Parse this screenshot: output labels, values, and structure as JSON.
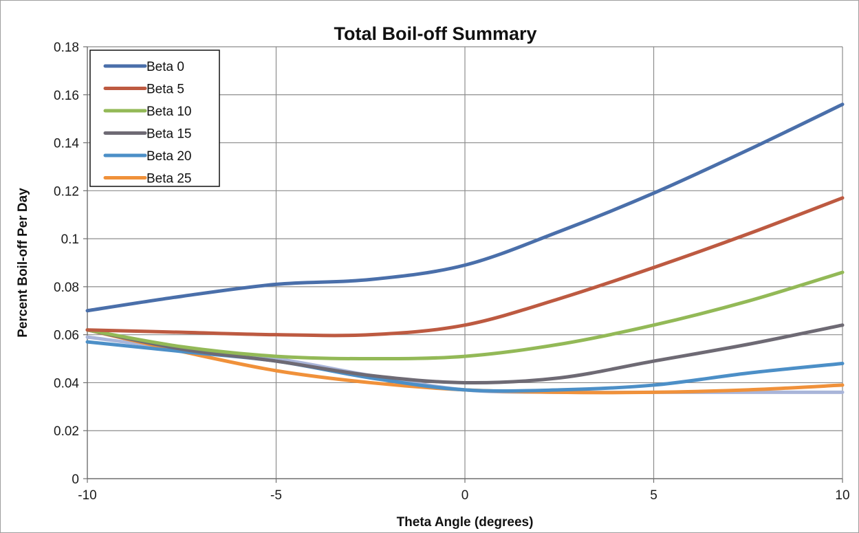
{
  "chart_data": {
    "type": "line",
    "title": "Total Boil-off Summary",
    "xlabel": "Theta Angle (degrees)",
    "ylabel": "Percent Boil-off Per Day",
    "xlim": [
      -10,
      10
    ],
    "ylim": [
      0,
      0.18
    ],
    "x_ticks": [
      -10,
      -5,
      0,
      5,
      10
    ],
    "x_tick_labels": [
      "-10",
      "-5",
      "0",
      "5",
      "10"
    ],
    "y_ticks": [
      0,
      0.02,
      0.04,
      0.06,
      0.08,
      0.1,
      0.12,
      0.14,
      0.16,
      0.18
    ],
    "y_tick_labels": [
      "0",
      "0.02",
      "0.04",
      "0.06",
      "0.08",
      "0.1",
      "0.12",
      "0.14",
      "0.16",
      "0.18"
    ],
    "grid": true,
    "legend_position": "top-left",
    "x": [
      -10,
      -7.5,
      -5,
      -2.5,
      0,
      2.5,
      5,
      7.5,
      10
    ],
    "series": [
      {
        "name": "Beta 0",
        "color": "#4a6faa",
        "values": [
          0.07,
          0.076,
          0.081,
          0.083,
          0.089,
          0.103,
          0.119,
          0.137,
          0.156
        ]
      },
      {
        "name": "Beta 5",
        "color": "#bd5a41",
        "values": [
          0.062,
          0.061,
          0.06,
          0.06,
          0.064,
          0.075,
          0.088,
          0.102,
          0.117
        ]
      },
      {
        "name": "Beta 10",
        "color": "#93b957",
        "values": [
          0.062,
          0.055,
          0.051,
          0.05,
          0.051,
          0.056,
          0.064,
          0.074,
          0.086
        ]
      },
      {
        "name": "Beta 15",
        "color": "#6e6a74",
        "values": [
          0.062,
          0.054,
          0.049,
          0.043,
          0.04,
          0.042,
          0.049,
          0.056,
          0.064
        ]
      },
      {
        "name": "Beta 20",
        "color": "#4c8fc7",
        "values": [
          0.057,
          0.053,
          0.049,
          0.042,
          0.037,
          0.037,
          0.039,
          0.044,
          0.048
        ]
      },
      {
        "name": "Beta 25",
        "color": "#f0913a",
        "values": [
          0.062,
          0.053,
          0.045,
          0.04,
          0.037,
          0.036,
          0.036,
          0.037,
          0.039
        ]
      },
      {
        "name": "",
        "color": "#a9b5d9",
        "values": [
          0.059,
          0.054,
          0.05,
          0.043,
          0.037,
          0.036,
          0.036,
          0.036,
          0.036
        ]
      }
    ]
  }
}
